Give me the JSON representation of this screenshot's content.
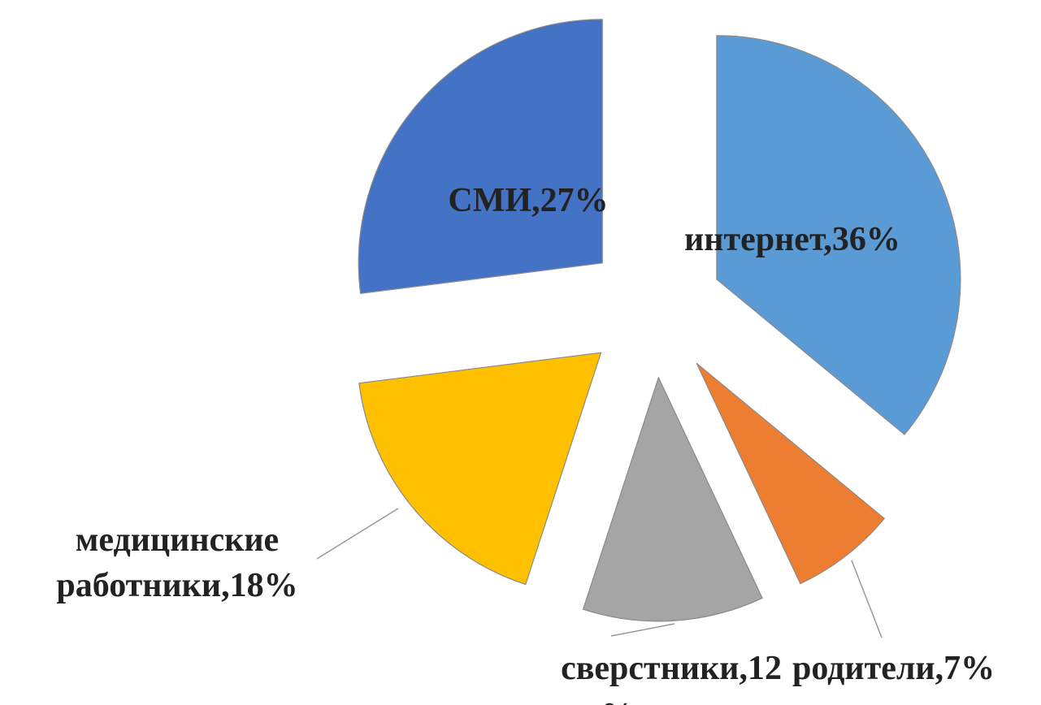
{
  "chart_data": {
    "type": "pie",
    "values": [
      36,
      7,
      12,
      18,
      27
    ],
    "value_labels": [
      [
        "интернет,36%"
      ],
      [
        "родители,7%"
      ],
      [
        "сверстники,12",
        "%"
      ],
      [
        "медицинские",
        "работники,18%"
      ],
      [
        "СМИ,27%"
      ]
    ],
    "colors": [
      "#5b9bd5",
      "#ed7d31",
      "#a5a5a5",
      "#ffc000",
      "#4472c4"
    ]
  }
}
